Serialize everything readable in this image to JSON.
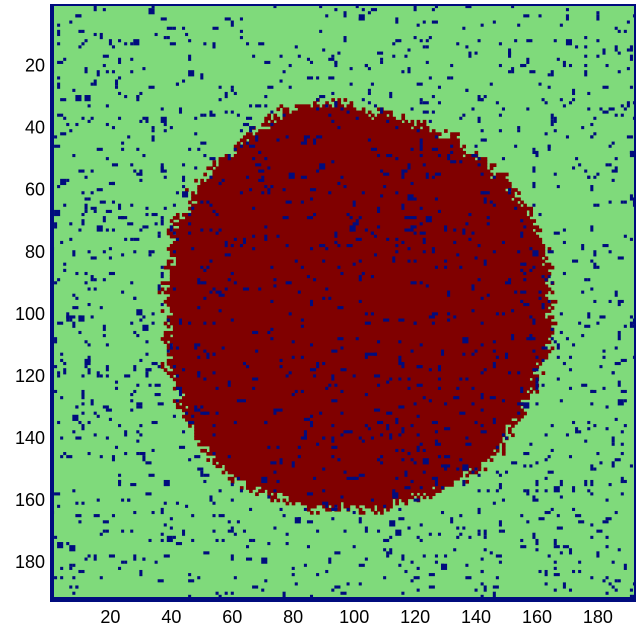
{
  "chart_data": {
    "type": "heatmap",
    "title": "",
    "xlabel": "",
    "ylabel": "",
    "xlim": [
      1,
      192
    ],
    "ylim": [
      1,
      192
    ],
    "y_axis_direction": "top-to-bottom",
    "grid": false,
    "legend": "none",
    "xticks": [
      20,
      40,
      60,
      80,
      100,
      120,
      140,
      160,
      180
    ],
    "yticks": [
      20,
      40,
      60,
      80,
      100,
      120,
      140,
      160,
      180
    ],
    "classes": [
      {
        "value": 0,
        "color": "#000c7e"
      },
      {
        "value": 1,
        "color": "#7fda7b"
      },
      {
        "value": 2,
        "color": "#800000"
      }
    ],
    "background_class": 1,
    "blob": {
      "class": 2,
      "center": [
        100,
        98
      ],
      "x_extent": [
        32,
        170
      ],
      "y_extent": [
        29,
        170
      ]
    },
    "speckle_class": 0,
    "speckle_fraction": 0.045,
    "border_class": 0
  }
}
